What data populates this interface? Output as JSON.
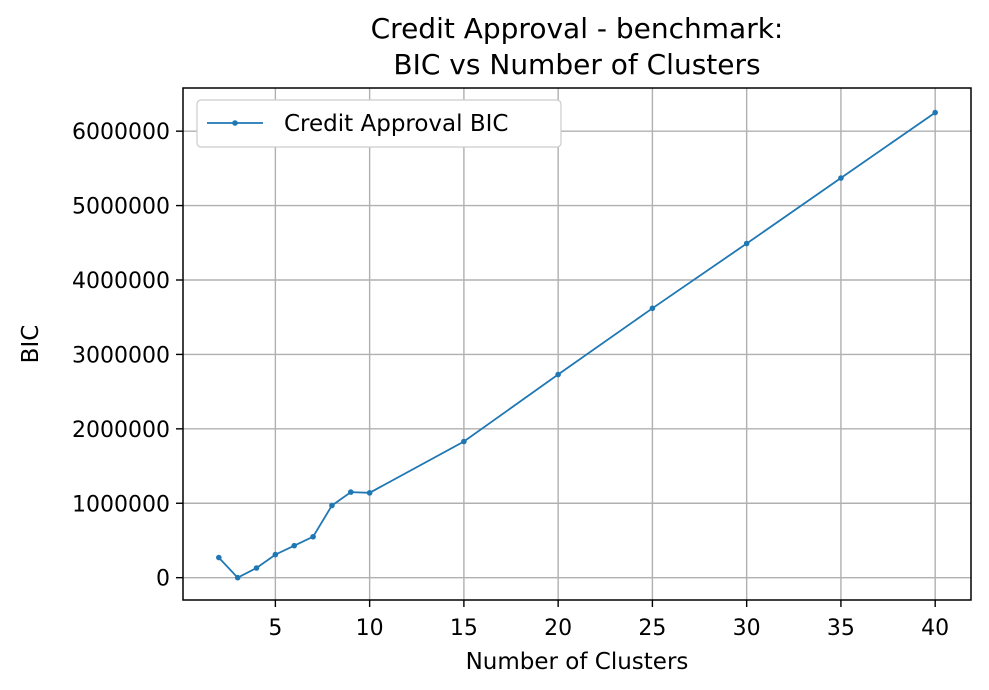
{
  "chart_data": {
    "type": "line",
    "title": "Credit Approval - benchmark:",
    "subtitle": "BIC vs Number of Clusters",
    "xlabel": "Number of Clusters",
    "ylabel": "BIC",
    "xlim": [
      0.1,
      41.9
    ],
    "ylim": [
      -300000,
      6580000
    ],
    "xticks": [
      5,
      10,
      15,
      20,
      25,
      30,
      35,
      40
    ],
    "yticks": [
      0,
      1000000,
      2000000,
      3000000,
      4000000,
      5000000,
      6000000
    ],
    "grid": true,
    "legend_position": "top-left",
    "series": [
      {
        "name": "Credit Approval BIC",
        "color": "#1f77b4",
        "x": [
          2,
          3,
          4,
          5,
          6,
          7,
          8,
          9,
          10,
          15,
          20,
          25,
          30,
          35,
          40
        ],
        "y": [
          270000,
          0,
          130000,
          310000,
          430000,
          550000,
          970000,
          1150000,
          1140000,
          1830000,
          2730000,
          3620000,
          4490000,
          5370000,
          6250000
        ]
      }
    ]
  }
}
